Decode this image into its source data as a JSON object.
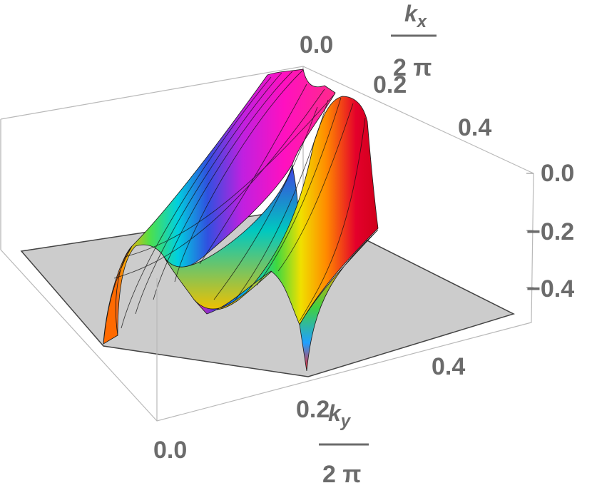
{
  "chart_data": {
    "type": "surface3d",
    "axes": {
      "x": {
        "label_numerator_symbol": "k",
        "label_numerator_subscript": "x",
        "label_denominator": "2 π",
        "ticks": [
          "0.0",
          "0.2",
          "0.4"
        ],
        "range": [
          0,
          0.5
        ]
      },
      "y": {
        "label_numerator_symbol": "k",
        "label_numerator_subscript": "y",
        "label_denominator": "2 π",
        "ticks": [
          "0.0",
          "0.2",
          "0.4"
        ],
        "range": [
          0,
          0.5
        ]
      },
      "z": {
        "ticks": [
          "0.0",
          "−0.2",
          "−0.4"
        ],
        "range": [
          -0.5,
          0.0
        ]
      }
    },
    "surface_description": "two parallel ridges with maximum near z = 0.0 along k_x, falling toward z ≈ −0.5 near k_y = 0 and k_y = 0.5",
    "coloring": "hue-cycling (red, orange, yellow, green, cyan, blue, magenta)",
    "floor_color": "#cccccc",
    "box": true
  }
}
